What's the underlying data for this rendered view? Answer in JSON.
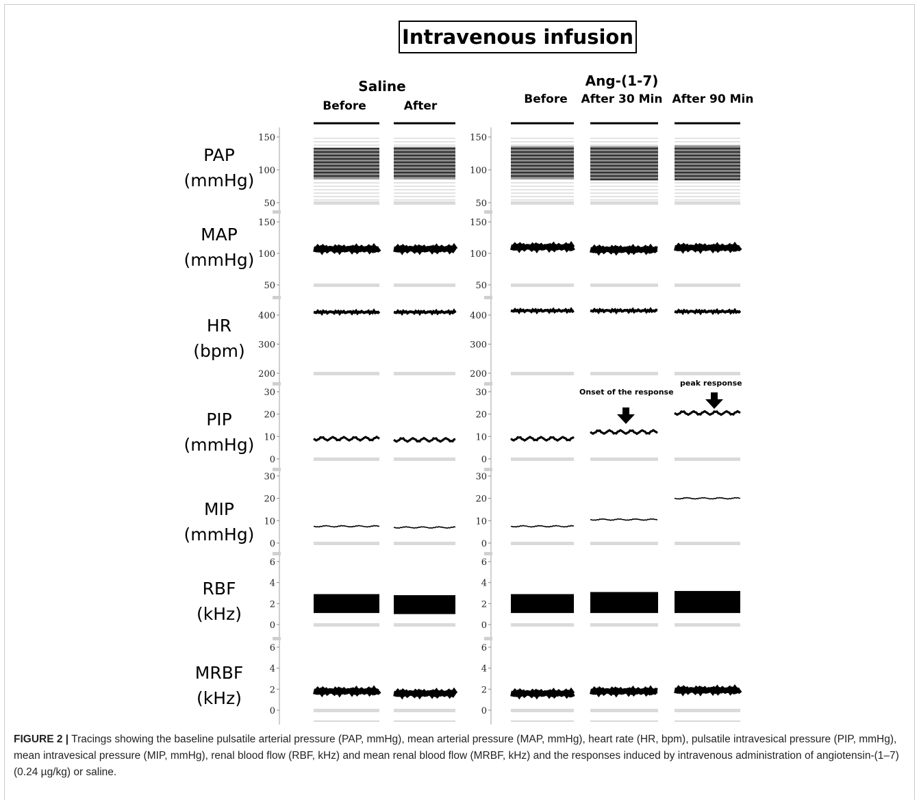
{
  "figure": {
    "title": "Intravenous infusion",
    "caption_label": "FIGURE 2 |",
    "caption_text": "Tracings showing the baseline pulsatile arterial pressure (PAP, mmHg), mean arterial pressure (MAP, mmHg), heart rate (HR, bpm), pulsatile intravesical pressure (PIP, mmHg), mean intravesical pressure (MIP, mmHg), renal blood flow (RBF, kHz) and mean renal blood flow (MRBF, kHz) and the responses induced by intravenous administration of angiotensin-(1–7) (0.24 µg/kg) or saline."
  },
  "groups": [
    {
      "name": "Saline",
      "columns": [
        "Before",
        "After"
      ]
    },
    {
      "name": "Ang-(1-7)",
      "columns": [
        "Before",
        "After 30 Min",
        "After 90 Min"
      ]
    }
  ],
  "annotations": [
    {
      "text": "Onset of the response",
      "column": "After 30 Min",
      "row": "PIP"
    },
    {
      "text": "peak  response",
      "column": "After 90 Min",
      "row": "PIP"
    }
  ],
  "chart_data": {
    "type": "line",
    "title": "Intravenous infusion",
    "columns": [
      "Saline Before",
      "Saline After",
      "Ang-(1-7) Before",
      "Ang-(1-7) After 30 Min",
      "Ang-(1-7) After 90 Min"
    ],
    "rows": [
      {
        "label": "PAP",
        "unit": "(mmHg)",
        "ticks": [
          "150",
          "100",
          "50"
        ],
        "ylim": [
          50,
          150
        ],
        "style": "pulsatile",
        "values": [
          [
            86,
            133
          ],
          [
            86,
            135
          ],
          [
            86,
            136
          ],
          [
            84,
            136
          ],
          [
            84,
            137
          ]
        ]
      },
      {
        "label": "MAP",
        "unit": "(mmHg)",
        "ticks": [
          "150",
          "100",
          "50"
        ],
        "ylim": [
          50,
          150
        ],
        "style": "mean",
        "values": [
          107,
          107,
          110,
          106,
          109
        ]
      },
      {
        "label": "HR",
        "unit": "(bpm)",
        "ticks": [
          "400",
          "300",
          "200"
        ],
        "ylim": [
          200,
          400
        ],
        "style": "mean",
        "values": [
          410,
          410,
          415,
          415,
          412
        ]
      },
      {
        "label": "PIP",
        "unit": "(mmHg)",
        "ticks": [
          "30",
          "20",
          "10",
          "0"
        ],
        "ylim": [
          0,
          30
        ],
        "style": "wavy",
        "values": [
          9,
          8.5,
          9,
          12,
          20.5
        ]
      },
      {
        "label": "MIP",
        "unit": "(mmHg)",
        "ticks": [
          "30",
          "20",
          "10",
          "0"
        ],
        "ylim": [
          0,
          30
        ],
        "style": "thin",
        "values": [
          7.5,
          7,
          7.5,
          10.5,
          20
        ]
      },
      {
        "label": "RBF",
        "unit": "(kHz)",
        "ticks": [
          "6",
          "4",
          "2",
          "0"
        ],
        "ylim": [
          0,
          6
        ],
        "style": "band",
        "values": [
          [
            1.1,
            2.9
          ],
          [
            1.0,
            2.8
          ],
          [
            1.1,
            2.9
          ],
          [
            1.1,
            3.1
          ],
          [
            1.1,
            3.2
          ]
        ]
      },
      {
        "label": "MRBF",
        "unit": "(kHz)",
        "ticks": [
          "6",
          "4",
          "2",
          "0"
        ],
        "ylim": [
          0,
          6
        ],
        "style": "mean",
        "values": [
          1.8,
          1.6,
          1.6,
          1.8,
          1.9
        ]
      }
    ]
  }
}
